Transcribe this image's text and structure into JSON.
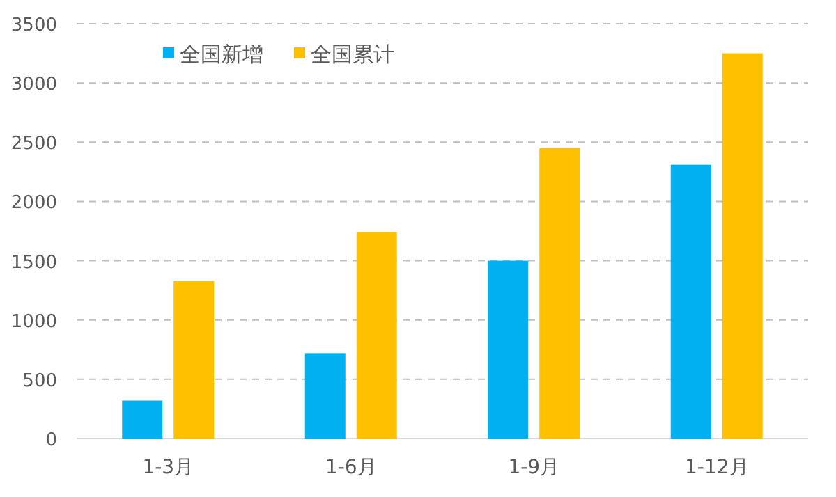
{
  "chart_data": {
    "type": "bar",
    "categories": [
      "1-3月",
      "1-6月",
      "1-9月",
      "1-12月"
    ],
    "series": [
      {
        "name": "全国新增",
        "color": "#00b0f0",
        "values": [
          320,
          720,
          1500,
          2310
        ]
      },
      {
        "name": "全国累计",
        "color": "#ffc000",
        "values": [
          1330,
          1740,
          2450,
          3250
        ]
      }
    ],
    "ylim": [
      0,
      3500
    ],
    "yticks": [
      0,
      500,
      1000,
      1500,
      2000,
      2500,
      3000,
      3500
    ],
    "grid": "y",
    "legend": "top left"
  }
}
